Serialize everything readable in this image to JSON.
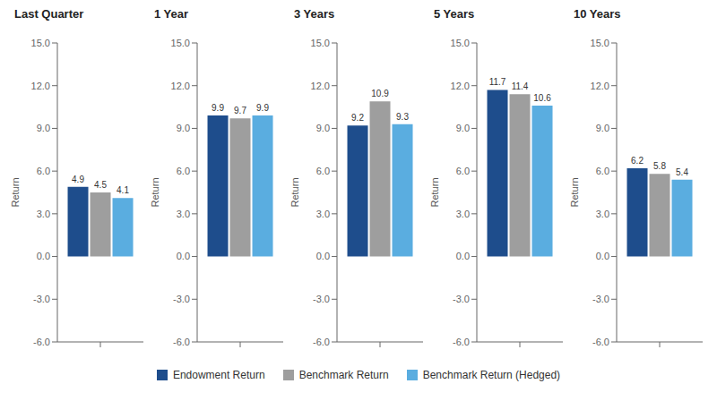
{
  "chart_data": [
    {
      "type": "bar",
      "title": "Last Quarter",
      "categories": [
        null
      ],
      "ylabel": "Return",
      "series": [
        {
          "name": "Endowment Return",
          "color": "#1e4d8c",
          "values": [
            4.9
          ]
        },
        {
          "name": "Benchmark Return",
          "color": "#9e9e9e",
          "values": [
            4.5
          ]
        },
        {
          "name": "Benchmark Return (Hedged)",
          "color": "#5aade0",
          "values": [
            4.1
          ]
        }
      ],
      "ylim": [
        -6,
        15
      ],
      "yticks": [
        {
          "value": -6,
          "label": "-6.0"
        },
        {
          "value": -3,
          "label": "-3.0"
        },
        {
          "value": 0,
          "label": "0.0"
        },
        {
          "value": 3,
          "label": "3.0"
        },
        {
          "value": 6,
          "label": "6.0"
        },
        {
          "value": 9,
          "label": "9.0"
        },
        {
          "value": 12,
          "label": "12.0"
        },
        {
          "value": 15,
          "label": "15.0"
        }
      ],
      "data_labels": true,
      "grid": false,
      "legend": "bottom"
    },
    {
      "type": "bar",
      "title": "1 Year",
      "categories": [
        null
      ],
      "ylabel": "Return",
      "series": [
        {
          "name": "Endowment Return",
          "color": "#1e4d8c",
          "values": [
            9.9
          ]
        },
        {
          "name": "Benchmark Return",
          "color": "#9e9e9e",
          "values": [
            9.7
          ]
        },
        {
          "name": "Benchmark Return (Hedged)",
          "color": "#5aade0",
          "values": [
            9.9
          ]
        }
      ],
      "ylim": [
        -6,
        15
      ],
      "yticks": [
        {
          "value": -6,
          "label": "-6.0"
        },
        {
          "value": -3,
          "label": "-3.0"
        },
        {
          "value": 0,
          "label": "0.0"
        },
        {
          "value": 3,
          "label": "3.0"
        },
        {
          "value": 6,
          "label": "6.0"
        },
        {
          "value": 9,
          "label": "9.0"
        },
        {
          "value": 12,
          "label": "12.0"
        },
        {
          "value": 15,
          "label": "15.0"
        }
      ],
      "data_labels": true,
      "grid": false,
      "legend": "bottom"
    },
    {
      "type": "bar",
      "title": "3 Years",
      "categories": [
        null
      ],
      "ylabel": "Return",
      "series": [
        {
          "name": "Endowment Return",
          "color": "#1e4d8c",
          "values": [
            9.2
          ]
        },
        {
          "name": "Benchmark Return",
          "color": "#9e9e9e",
          "values": [
            10.9
          ]
        },
        {
          "name": "Benchmark Return (Hedged)",
          "color": "#5aade0",
          "values": [
            9.3
          ]
        }
      ],
      "ylim": [
        -6,
        15
      ],
      "yticks": [
        {
          "value": -6,
          "label": "-6.0"
        },
        {
          "value": -3,
          "label": "-3.0"
        },
        {
          "value": 0,
          "label": "0.0"
        },
        {
          "value": 3,
          "label": "3.0"
        },
        {
          "value": 6,
          "label": "6.0"
        },
        {
          "value": 9,
          "label": "9.0"
        },
        {
          "value": 12,
          "label": "12.0"
        },
        {
          "value": 15,
          "label": "15.0"
        }
      ],
      "data_labels": true,
      "grid": false,
      "legend": "bottom"
    },
    {
      "type": "bar",
      "title": "5 Years",
      "categories": [
        null
      ],
      "ylabel": "Return",
      "series": [
        {
          "name": "Endowment Return",
          "color": "#1e4d8c",
          "values": [
            11.7
          ]
        },
        {
          "name": "Benchmark Return",
          "color": "#9e9e9e",
          "values": [
            11.4
          ]
        },
        {
          "name": "Benchmark Return (Hedged)",
          "color": "#5aade0",
          "values": [
            10.6
          ]
        }
      ],
      "ylim": [
        -6,
        15
      ],
      "yticks": [
        {
          "value": -6,
          "label": "-6.0"
        },
        {
          "value": -3,
          "label": "-3.0"
        },
        {
          "value": 0,
          "label": "0.0"
        },
        {
          "value": 3,
          "label": "3.0"
        },
        {
          "value": 6,
          "label": "6.0"
        },
        {
          "value": 9,
          "label": "9.0"
        },
        {
          "value": 12,
          "label": "12.0"
        },
        {
          "value": 15,
          "label": "15.0"
        }
      ],
      "data_labels": true,
      "grid": false,
      "legend": "bottom"
    },
    {
      "type": "bar",
      "title": "10 Years",
      "categories": [
        null
      ],
      "ylabel": "Return",
      "series": [
        {
          "name": "Endowment Return",
          "color": "#1e4d8c",
          "values": [
            6.2
          ]
        },
        {
          "name": "Benchmark Return",
          "color": "#9e9e9e",
          "values": [
            5.8
          ]
        },
        {
          "name": "Benchmark Return (Hedged)",
          "color": "#5aade0",
          "values": [
            5.4
          ]
        }
      ],
      "ylim": [
        -6,
        15
      ],
      "yticks": [
        {
          "value": -6,
          "label": "-6.0"
        },
        {
          "value": -3,
          "label": "-3.0"
        },
        {
          "value": 0,
          "label": "0.0"
        },
        {
          "value": 3,
          "label": "3.0"
        },
        {
          "value": 6,
          "label": "6.0"
        },
        {
          "value": 9,
          "label": "9.0"
        },
        {
          "value": 12,
          "label": "12.0"
        },
        {
          "value": 15,
          "label": "15.0"
        }
      ],
      "data_labels": true,
      "grid": false,
      "legend": "bottom"
    }
  ]
}
